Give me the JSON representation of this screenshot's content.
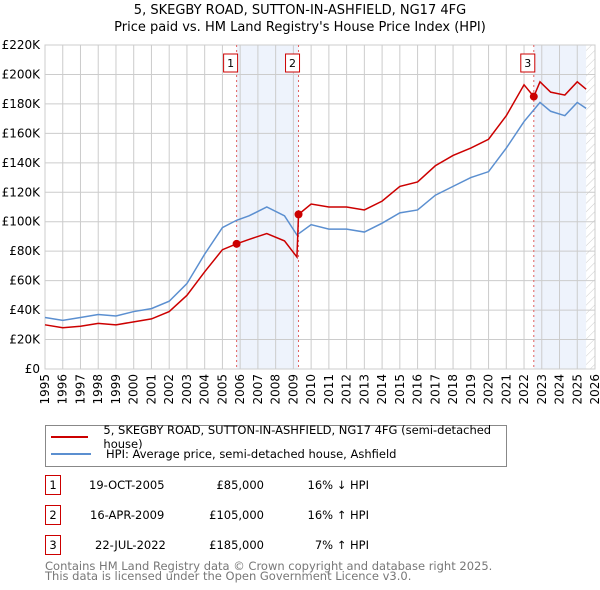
{
  "title": "5, SKEGBY ROAD, SUTTON-IN-ASHFIELD, NG17 4FG",
  "subtitle": "Price paid vs. HM Land Registry's House Price Index (HPI)",
  "chart_data": {
    "type": "line",
    "title": "5, SKEGBY ROAD, SUTTON-IN-ASHFIELD, NG17 4FG",
    "subtitle": "Price paid vs. HM Land Registry's House Price Index (HPI)",
    "xlim": [
      1995,
      2026
    ],
    "ylim": [
      0,
      220000
    ],
    "y_ticks": [
      {
        "v": 0,
        "label": "£0"
      },
      {
        "v": 20000,
        "label": "£20K"
      },
      {
        "v": 40000,
        "label": "£40K"
      },
      {
        "v": 60000,
        "label": "£60K"
      },
      {
        "v": 80000,
        "label": "£80K"
      },
      {
        "v": 100000,
        "label": "£100K"
      },
      {
        "v": 120000,
        "label": "£120K"
      },
      {
        "v": 140000,
        "label": "£140K"
      },
      {
        "v": 160000,
        "label": "£160K"
      },
      {
        "v": 180000,
        "label": "£180K"
      },
      {
        "v": 200000,
        "label": "£200K"
      },
      {
        "v": 220000,
        "label": "£220K"
      }
    ],
    "x_ticks": [
      "1995",
      "1996",
      "1997",
      "1998",
      "1999",
      "2000",
      "2001",
      "2002",
      "2003",
      "2004",
      "2005",
      "2006",
      "2007",
      "2008",
      "2009",
      "2010",
      "2011",
      "2012",
      "2013",
      "2014",
      "2015",
      "2016",
      "2017",
      "2018",
      "2019",
      "2020",
      "2021",
      "2022",
      "2023",
      "2024",
      "2025",
      "2026"
    ],
    "grid": true,
    "series": [
      {
        "name": "5, SKEGBY ROAD, SUTTON-IN-ASHFIELD, NG17 4FG (semi-detached house)",
        "color": "#cc0000",
        "x": [
          1995,
          1996,
          1997,
          1998,
          1999,
          2000,
          2001,
          2002,
          2003,
          2004,
          2005,
          2005.8,
          2006.5,
          2007.5,
          2008.5,
          2009.2,
          2009.29,
          2010,
          2011,
          2012,
          2013,
          2014,
          2015,
          2016,
          2017,
          2018,
          2019,
          2020,
          2021,
          2022,
          2022.55,
          2022.9,
          2023.5,
          2024.3,
          2025,
          2025.5
        ],
        "y": [
          30000,
          28000,
          29000,
          31000,
          30000,
          32000,
          34000,
          39000,
          50000,
          66000,
          81000,
          85000,
          88000,
          92000,
          87000,
          76000,
          105000,
          112000,
          110000,
          110000,
          108000,
          114000,
          124000,
          127000,
          138000,
          145000,
          150000,
          156000,
          172000,
          193000,
          185000,
          195000,
          188000,
          186000,
          195000,
          190000
        ]
      },
      {
        "name": "HPI: Average price, semi-detached house, Ashfield",
        "color": "#5b8fd0",
        "x": [
          1995,
          1996,
          1997,
          1998,
          1999,
          2000,
          2001,
          2002,
          2003,
          2004,
          2005,
          2005.8,
          2006.5,
          2007.5,
          2008.5,
          2009.2,
          2010,
          2011,
          2012,
          2013,
          2014,
          2015,
          2016,
          2017,
          2018,
          2019,
          2020,
          2021,
          2022,
          2022.9,
          2023.5,
          2024.3,
          2025,
          2025.5
        ],
        "y": [
          35000,
          33000,
          35000,
          37000,
          36000,
          39000,
          41000,
          46000,
          58000,
          78000,
          96000,
          101000,
          104000,
          110000,
          104000,
          91000,
          98000,
          95000,
          95000,
          93000,
          99000,
          106000,
          108000,
          118000,
          124000,
          130000,
          134000,
          150000,
          168000,
          181000,
          175000,
          172000,
          181000,
          177000
        ]
      }
    ],
    "sales": [
      {
        "label": "1",
        "x": 2005.8,
        "y": 85000
      },
      {
        "label": "2",
        "x": 2009.29,
        "y": 105000
      },
      {
        "label": "3",
        "x": 2022.55,
        "y": 185000
      }
    ],
    "shaded": [
      [
        2005.8,
        2009.29
      ],
      [
        2022.55,
        2025.5
      ]
    ],
    "hatched_from": 2025.5,
    "legend": "bottom"
  },
  "legend": {
    "items": [
      "5, SKEGBY ROAD, SUTTON-IN-ASHFIELD, NG17 4FG (semi-detached house)",
      "HPI: Average price, semi-detached house, Ashfield"
    ]
  },
  "transactions": [
    {
      "num": "1",
      "date": "19-OCT-2005",
      "price": "£85,000",
      "hpi": "16% ↓ HPI"
    },
    {
      "num": "2",
      "date": "16-APR-2009",
      "price": "£105,000",
      "hpi": "16% ↑ HPI"
    },
    {
      "num": "3",
      "date": "22-JUL-2022",
      "price": "£185,000",
      "hpi": "7% ↑ HPI"
    }
  ],
  "footer": [
    "Contains HM Land Registry data © Crown copyright and database right 2025.",
    "This data is licensed under the Open Government Licence v3.0."
  ]
}
